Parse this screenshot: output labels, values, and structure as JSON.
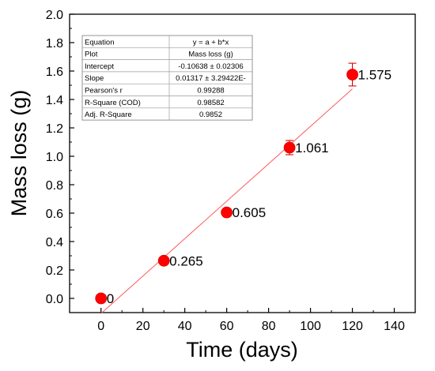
{
  "chart_data": {
    "type": "scatter",
    "x": [
      0,
      30,
      60,
      90,
      120
    ],
    "y": [
      0,
      0.265,
      0.605,
      1.061,
      1.575
    ],
    "y_error": [
      0,
      0,
      0,
      0.05,
      0.08
    ],
    "data_labels": [
      "0",
      "0.265",
      "0.605",
      "1.061",
      "1.575"
    ],
    "xlabel": "Time (days)",
    "ylabel": "Mass loss (g)",
    "xlim": [
      -15,
      150
    ],
    "ylim": [
      -0.1,
      2.0
    ],
    "xticks": [
      0,
      20,
      40,
      60,
      80,
      100,
      120,
      140
    ],
    "xtick_labels": [
      "0",
      "20",
      "40",
      "60",
      "80",
      "100",
      "120",
      "140"
    ],
    "yticks": [
      0,
      0.2,
      0.4,
      0.6,
      0.8,
      1.0,
      1.2,
      1.4,
      1.6,
      1.8,
      2.0
    ],
    "ytick_labels": [
      "0.0",
      "0.2",
      "0.4",
      "0.6",
      "0.8",
      "1.0",
      "1.2",
      "1.4",
      "1.6",
      "1.8",
      "2.0"
    ],
    "grid": false,
    "marker_color": "#ff0000",
    "fit": {
      "intercept": -0.10638,
      "slope": 0.01317,
      "color": "#ff5a5a",
      "x_range": [
        0,
        120
      ]
    },
    "fit_table": [
      [
        "Equation",
        "y = a + b*x"
      ],
      [
        "Plot",
        "Mass loss (g)"
      ],
      [
        "Intercept",
        "-0.10638 ± 0.02306"
      ],
      [
        "Slope",
        "0.01317 ± 3.29422E-"
      ],
      [
        "Pearson's r",
        "0.99288"
      ],
      [
        "R-Square (COD)",
        "0.98582"
      ],
      [
        "Adj. R-Square",
        "0.9852"
      ]
    ]
  }
}
